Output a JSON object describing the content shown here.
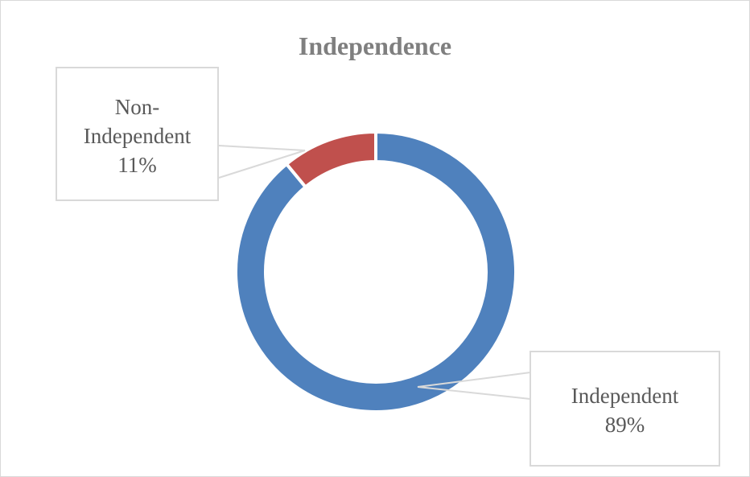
{
  "chart_data": {
    "type": "donut",
    "title": "Independence",
    "categories": [
      "Independent",
      "Non-Independent"
    ],
    "values": [
      89,
      11
    ],
    "value_labels": [
      "89%",
      "11%"
    ],
    "colors": [
      "#4f81bd",
      "#c0504d"
    ]
  }
}
